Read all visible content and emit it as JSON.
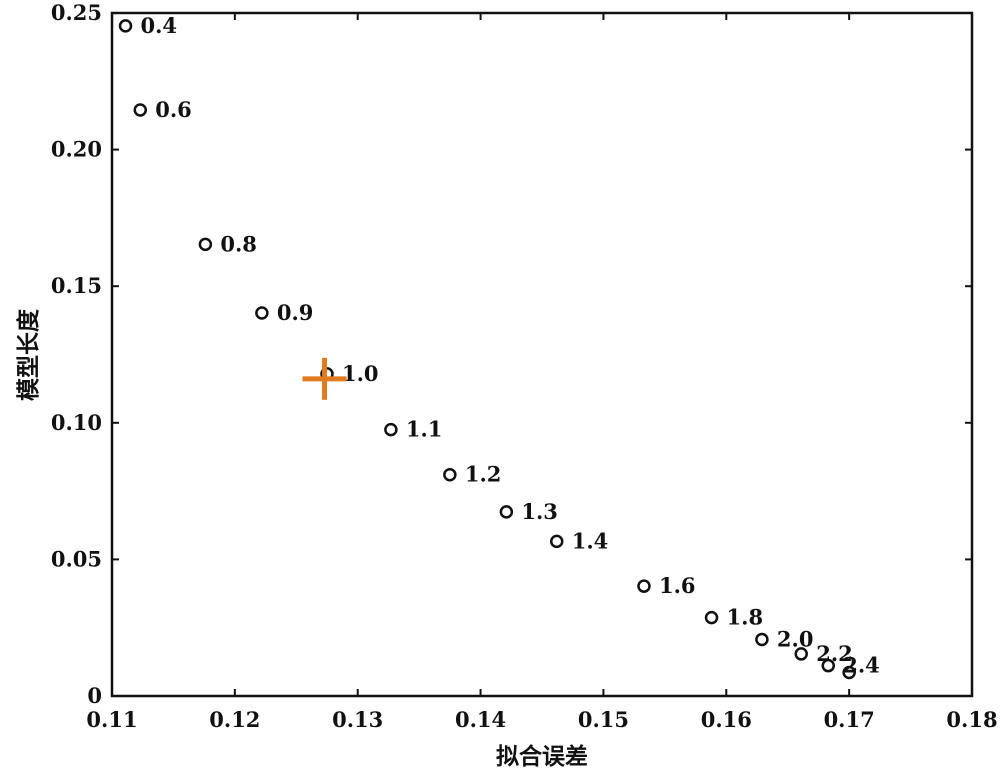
{
  "chart_data": {
    "type": "scatter",
    "title": "",
    "xlabel": "拟合误差",
    "ylabel": "模型长度",
    "xlim": [
      0.11,
      0.18
    ],
    "ylim": [
      0,
      0.25
    ],
    "grid": false,
    "x_ticks": [
      0.11,
      0.12,
      0.13,
      0.14,
      0.15,
      0.16,
      0.17,
      0.18
    ],
    "x_tick_labels": [
      "0.11",
      "0.12",
      "0.13",
      "0.14",
      "0.15",
      "0.16",
      "0.17",
      "0.18"
    ],
    "y_ticks": [
      0,
      0.05,
      0.1,
      0.15,
      0.2,
      0.25
    ],
    "y_tick_labels": [
      "0",
      "0.05",
      "0.10",
      "0.15",
      "0.20",
      "0.25"
    ],
    "points": [
      {
        "x": 0.1111,
        "y": 0.2453,
        "label": "0.4"
      },
      {
        "x": 0.1123,
        "y": 0.2145,
        "label": "0.6"
      },
      {
        "x": 0.1176,
        "y": 0.1653,
        "label": "0.8"
      },
      {
        "x": 0.1222,
        "y": 0.1402,
        "label": "0.9"
      },
      {
        "x": 0.1275,
        "y": 0.1179,
        "label": "1.0"
      },
      {
        "x": 0.1327,
        "y": 0.0975,
        "label": "1.1"
      },
      {
        "x": 0.1375,
        "y": 0.081,
        "label": "1.2"
      },
      {
        "x": 0.1421,
        "y": 0.0674,
        "label": "1.3"
      },
      {
        "x": 0.1462,
        "y": 0.0566,
        "label": "1.4"
      },
      {
        "x": 0.1533,
        "y": 0.0402,
        "label": "1.6"
      },
      {
        "x": 0.1588,
        "y": 0.0287,
        "label": "1.8"
      },
      {
        "x": 0.1629,
        "y": 0.0207,
        "label": "2.0"
      },
      {
        "x": 0.1661,
        "y": 0.0154,
        "label": "2.2"
      },
      {
        "x": 0.1683,
        "y": 0.0111,
        "label": "2.4"
      },
      {
        "x": 0.17,
        "y": 0.0086,
        "label": ""
      }
    ],
    "highlight": {
      "x": 0.1273,
      "y": 0.1161
    },
    "colors": {
      "marker": "#111111",
      "highlight": "#e07a1f",
      "axis": "#111111"
    }
  }
}
